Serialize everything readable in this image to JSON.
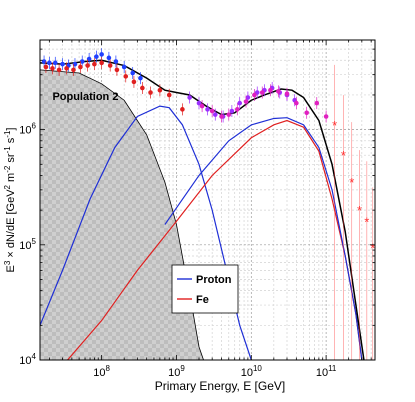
{
  "chart_data": {
    "type": "line",
    "title": "",
    "xlabel": "Primary Energy, E [GeV]",
    "ylabel": "E3 × dN/dE [GeV2 m-2 sr-1 s-1]",
    "xscale": "log",
    "yscale": "log",
    "xlim": [
      15000000,
      450000000000
    ],
    "ylim": [
      10000,
      6000000
    ],
    "x_ticks": [
      {
        "value": 100000000,
        "base": "10",
        "exp": "8"
      },
      {
        "value": 1000000000,
        "base": "10",
        "exp": "9"
      },
      {
        "value": 10000000000,
        "base": "10",
        "exp": "10"
      },
      {
        "value": 100000000000,
        "base": "10",
        "exp": "11"
      }
    ],
    "y_ticks": [
      {
        "value": 10000,
        "base": "10",
        "exp": "4"
      },
      {
        "value": 100000,
        "base": "10",
        "exp": "5"
      },
      {
        "value": 1000000,
        "base": "10",
        "exp": "6"
      }
    ],
    "grid": true,
    "legend": {
      "placement": "bottom-center",
      "entries": [
        {
          "label": "Proton",
          "color": "#1f2fd6"
        },
        {
          "label": "Fe",
          "color": "#e02020"
        }
      ]
    },
    "annotations": [
      {
        "text": "Population 2",
        "x": 22000000,
        "y": 1800000
      }
    ],
    "series": [
      {
        "kind": "area",
        "color": "#c8c8c8",
        "edge": "#000000",
        "x": [
          15000000,
          50000000,
          100000000,
          200000000,
          400000000,
          700000000,
          1000000000,
          1300000000,
          1600000000,
          2000000000,
          2300000000
        ],
        "y": [
          3300000,
          3100000,
          2500000,
          1800000,
          900000,
          350000,
          150000,
          60000,
          30000,
          13000,
          10000
        ]
      },
      {
        "kind": "line",
        "legend": "Proton",
        "color": "#1f2fd6",
        "x": [
          15000000,
          30000000,
          70000000,
          150000000,
          300000000,
          600000000,
          800000000,
          1200000000,
          2000000000,
          3000000000,
          5000000000,
          7000000000,
          10000000000
        ],
        "y": [
          20000,
          60000,
          250000,
          700000,
          1300000,
          1600000,
          1550000,
          1100000,
          500000,
          200000,
          50000,
          20000,
          10000
        ]
      },
      {
        "kind": "line",
        "legend": "Fe",
        "color": "#e02020",
        "x": [
          35000000,
          100000000,
          300000000,
          1000000000,
          3000000000,
          10000000000,
          20000000000,
          30000000000,
          50000000000,
          80000000000,
          120000000000,
          180000000000,
          250000000000,
          300000000000
        ],
        "y": [
          10000,
          22000,
          60000,
          160000,
          400000,
          850000,
          1100000,
          1200000,
          1050000,
          650000,
          250000,
          80000,
          25000,
          10000
        ]
      },
      {
        "kind": "line",
        "color": "#1f2fd6",
        "x": [
          700000000,
          2000000000,
          5000000000,
          10000000000,
          20000000000,
          30000000000,
          50000000000,
          80000000000,
          120000000000,
          180000000000,
          250000000000,
          300000000000
        ],
        "y": [
          150000,
          400000,
          800000,
          1100000,
          1250000,
          1270000,
          1100000,
          700000,
          300000,
          80000,
          25000,
          10000
        ]
      },
      {
        "kind": "line",
        "color": "#000000",
        "x": [
          15000000,
          30000000,
          60000000,
          100000000,
          200000000,
          400000000,
          700000000,
          1000000000,
          1500000000,
          2500000000,
          4000000000,
          6000000000,
          10000000000,
          15000000000,
          25000000000,
          35000000000,
          50000000000,
          80000000000,
          120000000000,
          180000000000,
          250000000000,
          320000000000
        ],
        "y": [
          3800000,
          3700000,
          3900000,
          4000000,
          3600000,
          2800000,
          2200000,
          2100000,
          2000000,
          1600000,
          1350000,
          1400000,
          1800000,
          2000000,
          2250000,
          2200000,
          1900000,
          1200000,
          500000,
          130000,
          30000,
          10000
        ]
      },
      {
        "kind": "points",
        "color": "#2040ff",
        "x": [
          17000000,
          20000000,
          24000000,
          30000000,
          36000000,
          44000000,
          55000000,
          68000000,
          85000000,
          100000000,
          125000000,
          155000000,
          200000000,
          260000000,
          330000000
        ],
        "y": [
          3900000,
          3800000,
          3800000,
          3700000,
          3600000,
          3700000,
          3900000,
          4100000,
          4300000,
          4500000,
          4200000,
          3900000,
          3500000,
          3100000,
          2800000
        ]
      },
      {
        "kind": "points",
        "color": "#e02020",
        "x": [
          18000000,
          22000000,
          27000000,
          34000000,
          42000000,
          52000000,
          65000000,
          80000000,
          100000000,
          130000000,
          160000000,
          210000000,
          270000000,
          350000000,
          450000000,
          600000000,
          800000000,
          1200000000
        ],
        "y": [
          3500000,
          3400000,
          3300000,
          3400000,
          3300000,
          3500000,
          3600000,
          3700000,
          3800000,
          3600000,
          3300000,
          2900000,
          2600000,
          2300000,
          2100000,
          2200000,
          2000000,
          1500000
        ]
      },
      {
        "kind": "points",
        "color": "#9b30ff",
        "x": [
          1500000000,
          2000000000,
          2600000000,
          3300000000,
          4200000000,
          5500000000,
          7000000000,
          9000000000,
          12000000000,
          15000000000,
          19000000000,
          24000000000,
          30000000000,
          38000000000
        ],
        "y": [
          1900000,
          1700000,
          1500000,
          1350000,
          1300000,
          1450000,
          1700000,
          1900000,
          2100000,
          2200000,
          2300000,
          2100000,
          2000000,
          1800000
        ]
      },
      {
        "kind": "points",
        "color": "#e020c0",
        "x": [
          2200000000,
          3000000000,
          4000000000,
          5000000000,
          6500000000,
          8500000000,
          11000000000,
          14000000000,
          18000000000,
          23000000000,
          30000000000,
          40000000000,
          55000000000,
          75000000000,
          100000000000
        ],
        "y": [
          1600000,
          1450000,
          1300000,
          1350000,
          1500000,
          1750000,
          2000000,
          2100000,
          2200000,
          2150000,
          2050000,
          1700000,
          1400000,
          1700000,
          1300000
        ]
      },
      {
        "kind": "stars",
        "color": "#ff3030",
        "x": [
          130000000000,
          170000000000,
          220000000000,
          280000000000,
          350000000000,
          420000000000
        ],
        "y": [
          1100000,
          600000,
          350000,
          200000,
          160000,
          95000
        ]
      }
    ]
  }
}
